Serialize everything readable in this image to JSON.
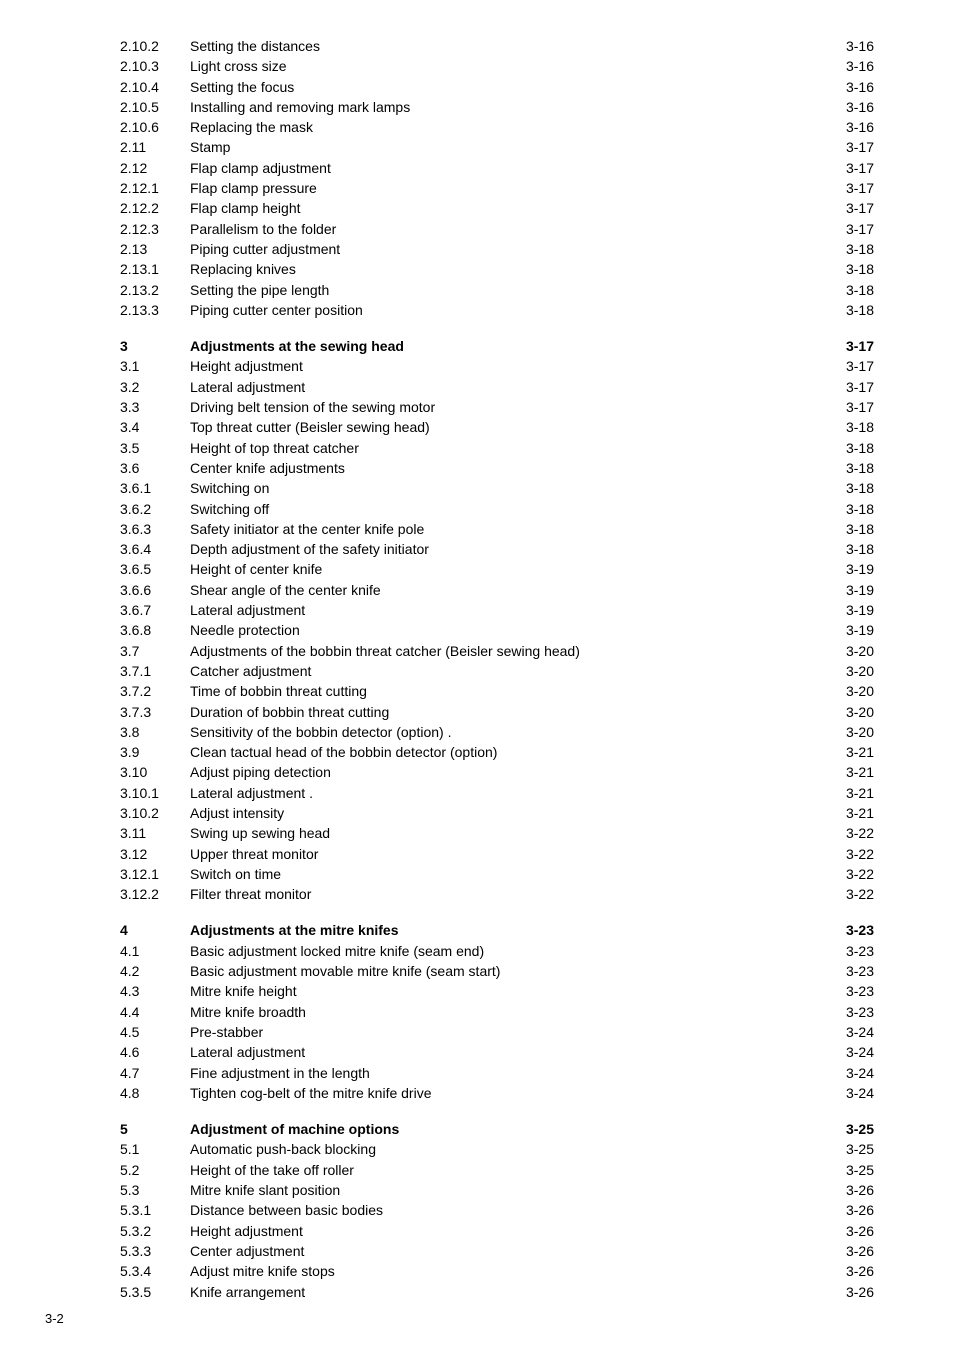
{
  "page_number_footer": "3-2",
  "colors": {
    "text": "#000000",
    "background": "#ffffff"
  },
  "typography": {
    "font_family": "Arial, Helvetica, sans-serif",
    "base_size_pt": 10
  },
  "toc": {
    "blocks": [
      {
        "entries": [
          {
            "num": "2.10.2",
            "title": "Setting the distances",
            "page": "3-16",
            "bold": false
          },
          {
            "num": "2.10.3",
            "title": "Light cross size",
            "page": "3-16",
            "bold": false
          },
          {
            "num": "2.10.4",
            "title": "Setting the focus",
            "page": "3-16",
            "bold": false
          },
          {
            "num": "2.10.5",
            "title": "Installing and removing mark lamps",
            "page": "3-16",
            "bold": false
          },
          {
            "num": "2.10.6",
            "title": "Replacing the mask",
            "page": "3-16",
            "bold": false
          },
          {
            "num": "2.11",
            "title": "Stamp",
            "page": "3-17",
            "bold": false
          },
          {
            "num": "2.12",
            "title": "Flap clamp adjustment",
            "page": "3-17",
            "bold": false
          },
          {
            "num": "2.12.1",
            "title": "Flap clamp pressure",
            "page": "3-17",
            "bold": false
          },
          {
            "num": "2.12.2",
            "title": "Flap clamp height",
            "page": "3-17",
            "bold": false
          },
          {
            "num": "2.12.3",
            "title": "Parallelism to the folder",
            "page": "3-17",
            "bold": false
          },
          {
            "num": "2.13",
            "title": "Piping cutter adjustment",
            "page": "3-18",
            "bold": false
          },
          {
            "num": "2.13.1",
            "title": "Replacing knives",
            "page": "3-18",
            "bold": false
          },
          {
            "num": "2.13.2",
            "title": "Setting the pipe length",
            "page": "3-18",
            "bold": false
          },
          {
            "num": "2.13.3",
            "title": "Piping cutter center position",
            "page": "3-18",
            "bold": false
          }
        ]
      },
      {
        "entries": [
          {
            "num": "3",
            "title": "Adjustments at the sewing head",
            "page": "3-17",
            "bold": true
          },
          {
            "num": "3.1",
            "title": "Height adjustment",
            "page": "3-17",
            "bold": false
          },
          {
            "num": "3.2",
            "title": "Lateral adjustment",
            "page": "3-17",
            "bold": false
          },
          {
            "num": "3.3",
            "title": "Driving belt tension of the sewing motor",
            "page": "3-17",
            "bold": false
          },
          {
            "num": "3.4",
            "title": "Top threat cutter (Beisler sewing head)",
            "page": "3-18",
            "bold": false
          },
          {
            "num": "3.5",
            "title": "Height of top threat catcher",
            "page": "3-18",
            "bold": false
          },
          {
            "num": "3.6",
            "title": "Center knife adjustments",
            "page": "3-18",
            "bold": false
          },
          {
            "num": "3.6.1",
            "title": "Switching on",
            "page": "3-18",
            "bold": false
          },
          {
            "num": "3.6.2",
            "title": "Switching off",
            "page": "3-18",
            "bold": false
          },
          {
            "num": "3.6.3",
            "title": "Safety initiator at the center knife pole",
            "page": "3-18",
            "bold": false
          },
          {
            "num": "3.6.4",
            "title": "Depth adjustment of the safety initiator",
            "page": "3-18",
            "bold": false
          },
          {
            "num": "3.6.5",
            "title": "Height of center knife",
            "page": "3-19",
            "bold": false
          },
          {
            "num": "3.6.6",
            "title": "Shear angle of the center knife",
            "page": "3-19",
            "bold": false,
            "sparse": true
          },
          {
            "num": "3.6.7",
            "title": "Lateral adjustment",
            "page": "3-19",
            "bold": false
          },
          {
            "num": "3.6.8",
            "title": "Needle protection",
            "page": "3-19",
            "bold": false
          },
          {
            "num": "3.7",
            "title": "Adjustments of the bobbin threat catcher (Beisler sewing head)",
            "page": "3-20",
            "bold": false
          },
          {
            "num": "3.7.1",
            "title": "Catcher adjustment",
            "page": "3-20",
            "bold": false
          },
          {
            "num": "3.7.2",
            "title": "Time of bobbin threat cutting",
            "page": "3-20",
            "bold": false
          },
          {
            "num": "3.7.3",
            "title": "Duration of bobbin threat cutting",
            "page": "3-20",
            "bold": false,
            "sparse": true
          },
          {
            "num": "3.8",
            "title": "Sensitivity of the bobbin detector (option)",
            "page": "3-20",
            "bold": false,
            "sparse": true,
            "title_suffix": " ."
          },
          {
            "num": "3.9",
            "title": "Clean tactual head of the bobbin detector (option)",
            "page": "3-21",
            "bold": false
          },
          {
            "num": "3.10",
            "title": "Adjust piping detection",
            "page": "3-21",
            "bold": false
          },
          {
            "num": "3.10.1",
            "title": "Lateral adjustment .",
            "page": "3-21",
            "bold": false,
            "sparse": true
          },
          {
            "num": "3.10.2",
            "title": "Adjust intensity",
            "page": "3-21",
            "bold": false
          },
          {
            "num": "3.11",
            "title": "Swing up sewing head",
            "page": "3-22",
            "bold": false,
            "sparse": true
          },
          {
            "num": "3.12",
            "title": "Upper threat monitor",
            "page": "3-22",
            "bold": false,
            "sparse": true
          },
          {
            "num": "3.12.1",
            "title": "Switch on time",
            "page": "3-22",
            "bold": false
          },
          {
            "num": "3.12.2",
            "title": "Filter threat monitor",
            "page": "3-22",
            "bold": false,
            "sparse": true
          }
        ]
      },
      {
        "entries": [
          {
            "num": "4",
            "title": "Adjustments at the mitre knifes",
            "page": "3-23",
            "bold": true
          },
          {
            "num": "4.1",
            "title": "Basic adjustment locked mitre knife (seam end)",
            "page": "3-23",
            "bold": false
          },
          {
            "num": "4.2",
            "title": "Basic adjustment movable mitre knife (seam start)",
            "page": "3-23",
            "bold": false
          },
          {
            "num": "4.3",
            "title": "Mitre knife height",
            "page": "3-23",
            "bold": false
          },
          {
            "num": "4.4",
            "title": "Mitre knife broadth",
            "page": "3-23",
            "bold": false
          },
          {
            "num": "4.5",
            "title": "Pre-stabber",
            "page": "3-24",
            "bold": false
          },
          {
            "num": "4.6",
            "title": "Lateral adjustment",
            "page": "3-24",
            "bold": false
          },
          {
            "num": "4.7",
            "title": "Fine adjustment in the length",
            "page": "3-24",
            "bold": false
          },
          {
            "num": "4.8",
            "title": "Tighten cog-belt of the mitre knife drive",
            "page": "3-24",
            "bold": false
          }
        ]
      },
      {
        "entries": [
          {
            "num": "5",
            "title": "Adjustment of machine options",
            "page": "3-25",
            "bold": true
          },
          {
            "num": "5.1",
            "title": "Automatic push-back blocking",
            "page": "3-25",
            "bold": false
          },
          {
            "num": "5.2",
            "title": "Height of the take off roller",
            "page": "3-25",
            "bold": false
          },
          {
            "num": "5.3",
            "title": "Mitre knife slant position",
            "page": "3-26",
            "bold": false
          },
          {
            "num": "5.3.1",
            "title": "Distance between basic bodies",
            "page": "3-26",
            "bold": false,
            "sparse": true
          },
          {
            "num": "5.3.2",
            "title": "Height adjustment",
            "page": "3-26",
            "bold": false,
            "sparse": true
          },
          {
            "num": "5.3.3",
            "title": "Center adjustment",
            "page": "3-26",
            "bold": false
          },
          {
            "num": "5.3.4",
            "title": "Adjust mitre knife stops",
            "page": "3-26",
            "bold": false
          },
          {
            "num": "5.3.5",
            "title": "Knife arrangement",
            "page": "3-26",
            "bold": false
          }
        ]
      }
    ]
  }
}
